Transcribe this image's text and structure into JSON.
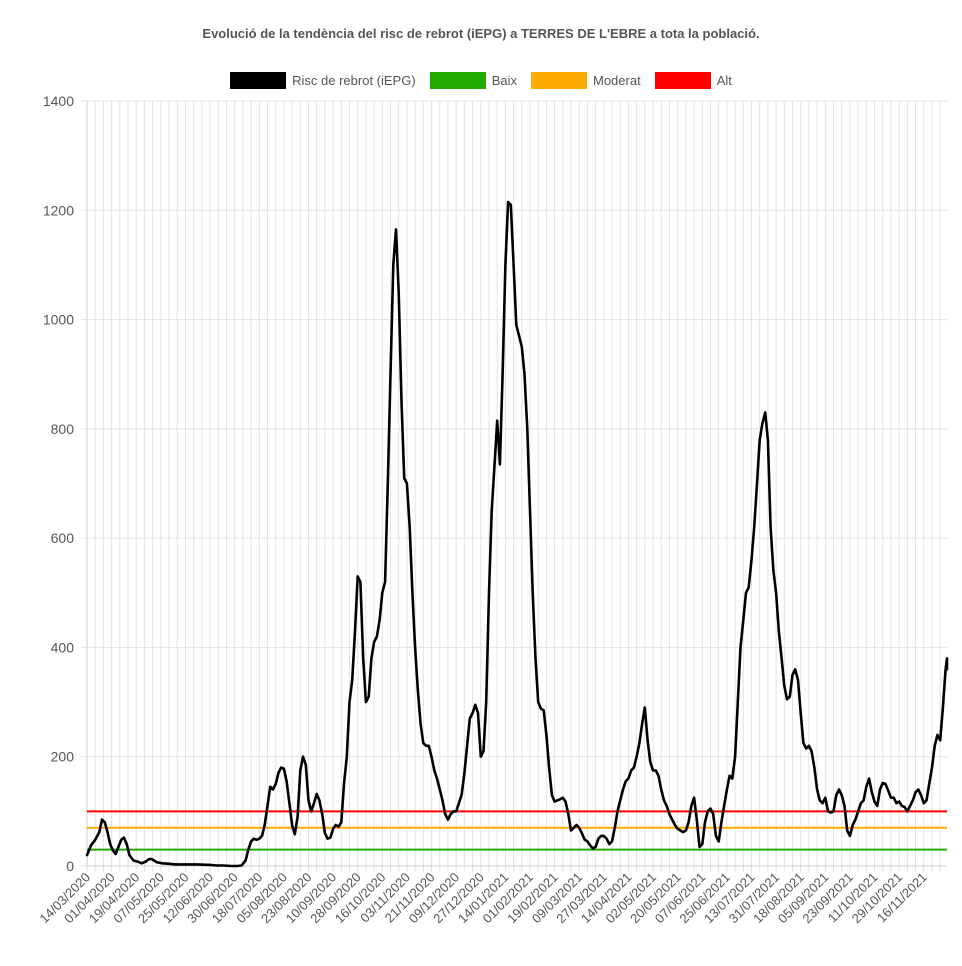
{
  "chart_data": {
    "type": "line",
    "title": "Evolució de la tendència del risc de rebrot (iEPG) a TERRES DE L'EBRE a tota la població.",
    "xlabel": "",
    "ylabel": "",
    "ylim": [
      0,
      1400
    ],
    "yticks": [
      0,
      200,
      400,
      600,
      800,
      1000,
      1200,
      1400
    ],
    "grid": true,
    "legend_position": "top",
    "x_tick_labels": [
      "14/03/2020",
      "01/04/2020",
      "19/04/2020",
      "07/05/2020",
      "25/05/2020",
      "12/06/2020",
      "30/06/2020",
      "18/07/2020",
      "05/08/2020",
      "23/08/2020",
      "10/09/2020",
      "28/09/2020",
      "16/10/2020",
      "03/11/2020",
      "21/11/2020",
      "09/12/2020",
      "27/12/2020",
      "14/01/2021",
      "01/02/2021",
      "19/02/2021",
      "09/03/2021",
      "27/03/2021",
      "14/04/2021",
      "02/05/2021",
      "20/05/2021",
      "07/06/2021",
      "25/06/2021",
      "13/07/2021",
      "31/07/2021",
      "18/08/2021",
      "05/09/2021",
      "23/09/2021",
      "11/10/2021",
      "29/10/2021",
      "16/11/2021"
    ],
    "x_range_days": [
      0,
      629
    ],
    "series": [
      {
        "name": "Risc de rebrot (iEPG)",
        "color": "#000000",
        "points": [
          [
            0,
            20
          ],
          [
            3,
            38
          ],
          [
            6,
            48
          ],
          [
            9,
            62
          ],
          [
            11,
            85
          ],
          [
            13,
            80
          ],
          [
            15,
            62
          ],
          [
            17,
            40
          ],
          [
            19,
            28
          ],
          [
            21,
            22
          ],
          [
            23,
            35
          ],
          [
            25,
            48
          ],
          [
            27,
            52
          ],
          [
            29,
            40
          ],
          [
            31,
            20
          ],
          [
            34,
            10
          ],
          [
            37,
            8
          ],
          [
            40,
            5
          ],
          [
            43,
            8
          ],
          [
            45,
            12
          ],
          [
            47,
            13
          ],
          [
            49,
            10
          ],
          [
            51,
            7
          ],
          [
            55,
            5
          ],
          [
            60,
            4
          ],
          [
            65,
            3
          ],
          [
            70,
            3
          ],
          [
            80,
            3
          ],
          [
            90,
            2
          ],
          [
            95,
            1
          ],
          [
            100,
            1
          ],
          [
            105,
            0
          ],
          [
            110,
            0
          ],
          [
            113,
            1
          ],
          [
            116,
            10
          ],
          [
            118,
            30
          ],
          [
            120,
            45
          ],
          [
            122,
            50
          ],
          [
            124,
            48
          ],
          [
            126,
            50
          ],
          [
            128,
            55
          ],
          [
            130,
            75
          ],
          [
            132,
            110
          ],
          [
            134,
            145
          ],
          [
            136,
            140
          ],
          [
            138,
            150
          ],
          [
            140,
            170
          ],
          [
            142,
            180
          ],
          [
            144,
            178
          ],
          [
            146,
            155
          ],
          [
            148,
            115
          ],
          [
            150,
            75
          ],
          [
            152,
            58
          ],
          [
            154,
            90
          ],
          [
            156,
            175
          ],
          [
            158,
            200
          ],
          [
            160,
            185
          ],
          [
            162,
            120
          ],
          [
            164,
            100
          ],
          [
            166,
            115
          ],
          [
            168,
            132
          ],
          [
            170,
            120
          ],
          [
            172,
            95
          ],
          [
            174,
            60
          ],
          [
            176,
            50
          ],
          [
            178,
            52
          ],
          [
            180,
            68
          ],
          [
            182,
            75
          ],
          [
            184,
            72
          ],
          [
            186,
            80
          ],
          [
            188,
            150
          ],
          [
            190,
            200
          ],
          [
            192,
            300
          ],
          [
            194,
            340
          ],
          [
            196,
            430
          ],
          [
            198,
            530
          ],
          [
            200,
            520
          ],
          [
            202,
            380
          ],
          [
            204,
            300
          ],
          [
            206,
            310
          ],
          [
            208,
            380
          ],
          [
            210,
            410
          ],
          [
            212,
            420
          ],
          [
            214,
            450
          ],
          [
            216,
            500
          ],
          [
            218,
            520
          ],
          [
            220,
            700
          ],
          [
            222,
            900
          ],
          [
            224,
            1100
          ],
          [
            226,
            1165
          ],
          [
            228,
            1050
          ],
          [
            230,
            850
          ],
          [
            232,
            710
          ],
          [
            234,
            700
          ],
          [
            236,
            620
          ],
          [
            238,
            500
          ],
          [
            240,
            400
          ],
          [
            242,
            320
          ],
          [
            244,
            260
          ],
          [
            246,
            225
          ],
          [
            248,
            220
          ],
          [
            250,
            220
          ],
          [
            252,
            200
          ],
          [
            254,
            175
          ],
          [
            256,
            160
          ],
          [
            258,
            140
          ],
          [
            260,
            120
          ],
          [
            262,
            95
          ],
          [
            264,
            85
          ],
          [
            266,
            95
          ],
          [
            268,
            100
          ],
          [
            270,
            100
          ],
          [
            272,
            115
          ],
          [
            274,
            130
          ],
          [
            276,
            170
          ],
          [
            278,
            220
          ],
          [
            280,
            270
          ],
          [
            282,
            280
          ],
          [
            284,
            295
          ],
          [
            286,
            280
          ],
          [
            288,
            200
          ],
          [
            290,
            210
          ],
          [
            292,
            300
          ],
          [
            294,
            500
          ],
          [
            296,
            650
          ],
          [
            298,
            730
          ],
          [
            300,
            815
          ],
          [
            302,
            735
          ],
          [
            304,
            900
          ],
          [
            306,
            1100
          ],
          [
            308,
            1215
          ],
          [
            310,
            1210
          ],
          [
            312,
            1100
          ],
          [
            314,
            990
          ],
          [
            316,
            970
          ],
          [
            318,
            950
          ],
          [
            320,
            900
          ],
          [
            322,
            800
          ],
          [
            324,
            650
          ],
          [
            326,
            500
          ],
          [
            328,
            380
          ],
          [
            330,
            300
          ],
          [
            332,
            288
          ],
          [
            334,
            285
          ],
          [
            336,
            240
          ],
          [
            338,
            180
          ],
          [
            340,
            130
          ],
          [
            342,
            118
          ],
          [
            344,
            120
          ],
          [
            346,
            122
          ],
          [
            348,
            125
          ],
          [
            350,
            118
          ],
          [
            352,
            95
          ],
          [
            354,
            65
          ],
          [
            356,
            70
          ],
          [
            358,
            75
          ],
          [
            360,
            70
          ],
          [
            362,
            60
          ],
          [
            364,
            48
          ],
          [
            366,
            45
          ],
          [
            368,
            38
          ],
          [
            370,
            32
          ],
          [
            372,
            35
          ],
          [
            374,
            50
          ],
          [
            376,
            55
          ],
          [
            378,
            55
          ],
          [
            380,
            50
          ],
          [
            382,
            40
          ],
          [
            384,
            45
          ],
          [
            386,
            70
          ],
          [
            388,
            100
          ],
          [
            390,
            120
          ],
          [
            392,
            140
          ],
          [
            394,
            155
          ],
          [
            396,
            160
          ],
          [
            398,
            175
          ],
          [
            400,
            180
          ],
          [
            402,
            200
          ],
          [
            404,
            225
          ],
          [
            406,
            260
          ],
          [
            408,
            290
          ],
          [
            410,
            230
          ],
          [
            412,
            190
          ],
          [
            414,
            175
          ],
          [
            416,
            175
          ],
          [
            418,
            165
          ],
          [
            420,
            140
          ],
          [
            422,
            120
          ],
          [
            424,
            110
          ],
          [
            426,
            95
          ],
          [
            428,
            85
          ],
          [
            430,
            75
          ],
          [
            432,
            68
          ],
          [
            434,
            65
          ],
          [
            436,
            62
          ],
          [
            438,
            65
          ],
          [
            440,
            80
          ],
          [
            442,
            110
          ],
          [
            444,
            125
          ],
          [
            446,
            85
          ],
          [
            448,
            35
          ],
          [
            450,
            40
          ],
          [
            452,
            80
          ],
          [
            454,
            100
          ],
          [
            456,
            105
          ],
          [
            458,
            95
          ],
          [
            460,
            55
          ],
          [
            462,
            45
          ],
          [
            464,
            80
          ],
          [
            466,
            110
          ],
          [
            468,
            140
          ],
          [
            470,
            165
          ],
          [
            472,
            160
          ],
          [
            474,
            200
          ],
          [
            476,
            300
          ],
          [
            478,
            400
          ],
          [
            480,
            450
          ],
          [
            482,
            500
          ],
          [
            484,
            510
          ],
          [
            486,
            560
          ],
          [
            488,
            620
          ],
          [
            490,
            700
          ],
          [
            492,
            780
          ],
          [
            494,
            810
          ],
          [
            496,
            830
          ],
          [
            498,
            780
          ],
          [
            500,
            620
          ],
          [
            502,
            540
          ],
          [
            504,
            500
          ],
          [
            506,
            430
          ],
          [
            508,
            380
          ],
          [
            510,
            330
          ],
          [
            512,
            305
          ],
          [
            514,
            310
          ],
          [
            516,
            350
          ],
          [
            518,
            360
          ],
          [
            520,
            340
          ],
          [
            522,
            280
          ],
          [
            524,
            225
          ],
          [
            526,
            215
          ],
          [
            528,
            220
          ],
          [
            530,
            210
          ],
          [
            532,
            180
          ],
          [
            534,
            140
          ],
          [
            536,
            120
          ],
          [
            538,
            115
          ],
          [
            540,
            125
          ],
          [
            542,
            100
          ],
          [
            544,
            98
          ],
          [
            546,
            100
          ],
          [
            548,
            130
          ],
          [
            550,
            140
          ],
          [
            552,
            130
          ],
          [
            554,
            110
          ],
          [
            556,
            65
          ],
          [
            558,
            55
          ],
          [
            560,
            75
          ],
          [
            562,
            85
          ],
          [
            564,
            100
          ],
          [
            566,
            115
          ],
          [
            568,
            120
          ],
          [
            570,
            145
          ],
          [
            572,
            160
          ],
          [
            574,
            135
          ],
          [
            576,
            118
          ],
          [
            578,
            110
          ],
          [
            580,
            140
          ],
          [
            582,
            152
          ],
          [
            584,
            150
          ],
          [
            586,
            138
          ],
          [
            588,
            125
          ],
          [
            590,
            125
          ],
          [
            592,
            115
          ],
          [
            594,
            118
          ],
          [
            596,
            110
          ],
          [
            598,
            108
          ],
          [
            600,
            100
          ],
          [
            602,
            110
          ],
          [
            604,
            120
          ],
          [
            606,
            135
          ],
          [
            608,
            140
          ],
          [
            610,
            130
          ],
          [
            612,
            115
          ],
          [
            614,
            120
          ],
          [
            616,
            150
          ],
          [
            618,
            180
          ],
          [
            620,
            220
          ],
          [
            622,
            240
          ],
          [
            624,
            230
          ],
          [
            626,
            290
          ],
          [
            628,
            360
          ],
          [
            630,
            380
          ],
          [
            632,
            360
          ]
        ]
      },
      {
        "name": "Baix",
        "color": "#22aa00",
        "constant": 30
      },
      {
        "name": "Moderat",
        "color": "#ffaa00",
        "constant": 70
      },
      {
        "name": "Alt",
        "color": "#ff0000",
        "constant": 100
      }
    ]
  }
}
